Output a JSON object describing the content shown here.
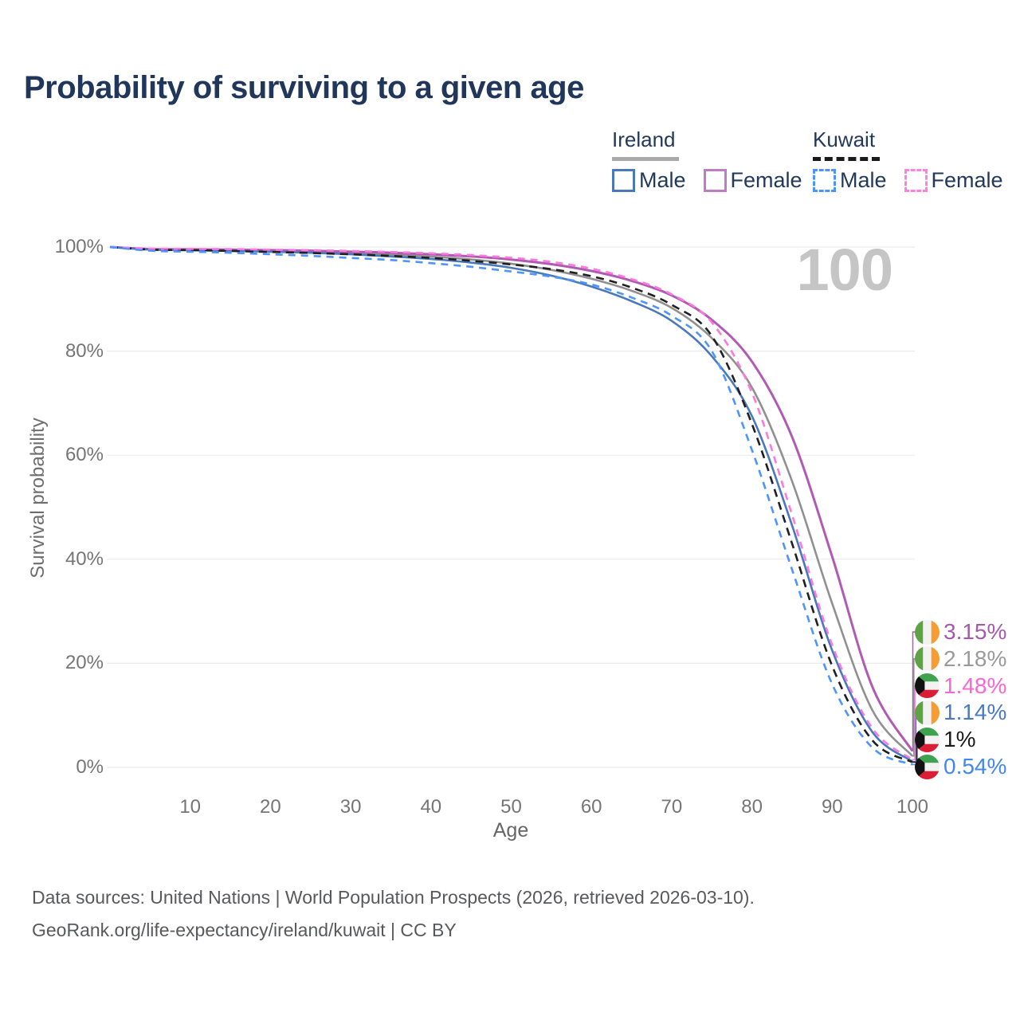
{
  "title": "Probability of surviving to a given age",
  "watermark": "100",
  "colors": {
    "title_text": "#20365a",
    "grid": "#ececec",
    "axis_text": "#757575",
    "watermark_text": "#c5c5c5",
    "footer_text": "#58595b"
  },
  "legend": {
    "groups": [
      {
        "country": "Ireland",
        "line": "solid",
        "line_color": "#a9a9a9",
        "items": [
          {
            "label": "Male",
            "color": "#4a78bc",
            "dashed": false
          },
          {
            "label": "Female",
            "color": "#bd7cc3",
            "dashed": false
          }
        ]
      },
      {
        "country": "Kuwait",
        "line": "dashed",
        "line_color": "#1a1a1a",
        "items": [
          {
            "label": "Male",
            "color": "#4d94ff",
            "dashed": true
          },
          {
            "label": "Female",
            "color": "#ff80df",
            "dashed": true
          }
        ]
      }
    ]
  },
  "chart_data": {
    "type": "line",
    "xlabel": "Age",
    "ylabel": "Survival probability",
    "xlim": [
      0,
      100
    ],
    "ylim": [
      0,
      100
    ],
    "grid": "horizontal-only",
    "x_ticks": [
      10,
      20,
      30,
      40,
      50,
      60,
      70,
      80,
      90,
      100
    ],
    "y_ticks": [
      {
        "value": 0,
        "label": "0%"
      },
      {
        "value": 20,
        "label": "20%"
      },
      {
        "value": 40,
        "label": "40%"
      },
      {
        "value": 60,
        "label": "60%"
      },
      {
        "value": 80,
        "label": "80%"
      },
      {
        "value": 100,
        "label": "100%"
      }
    ],
    "x": [
      0,
      5,
      10,
      15,
      20,
      25,
      30,
      35,
      40,
      45,
      50,
      55,
      60,
      65,
      70,
      75,
      80,
      85,
      90,
      95,
      100
    ],
    "series": [
      {
        "id": "ireland-total",
        "name": "Ireland (both sexes)",
        "country": "Ireland",
        "color": "#909090",
        "dash": null,
        "width": 2.6,
        "values": [
          100,
          99.55,
          99.5,
          99.4,
          99.25,
          99.1,
          98.85,
          98.55,
          98.15,
          97.6,
          96.8,
          95.6,
          93.9,
          91.6,
          88.3,
          82.5,
          73.0,
          55.0,
          31.5,
          11.0,
          2.18
        ]
      },
      {
        "id": "ireland-female",
        "name": "Ireland Female",
        "country": "Ireland",
        "color": "#b05ab4",
        "dash": null,
        "width": 3,
        "values": [
          100,
          99.6,
          99.55,
          99.5,
          99.4,
          99.3,
          99.1,
          98.9,
          98.6,
          98.2,
          97.6,
          96.7,
          95.4,
          93.5,
          90.7,
          86.0,
          78.0,
          63.5,
          40.5,
          15.5,
          3.15
        ]
      },
      {
        "id": "ireland-male",
        "name": "Ireland Male",
        "country": "Ireland",
        "color": "#4a78bc",
        "dash": null,
        "width": 2.6,
        "values": [
          100,
          99.5,
          99.4,
          99.3,
          99.1,
          98.9,
          98.6,
          98.2,
          97.7,
          97.0,
          96.0,
          94.5,
          92.4,
          89.6,
          85.8,
          79.0,
          67.5,
          46.5,
          22.5,
          6.8,
          1.14
        ]
      },
      {
        "id": "kuwait-total",
        "name": "Kuwait (both sexes)",
        "country": "Kuwait",
        "color": "#1f1f1f",
        "dash": "10 7",
        "width": 2.6,
        "values": [
          100,
          99.5,
          99.4,
          99.25,
          99.05,
          98.85,
          98.6,
          98.3,
          97.9,
          97.35,
          96.65,
          95.75,
          94.4,
          92.2,
          88.9,
          82.9,
          66.0,
          43.0,
          19.5,
          5.2,
          1.0
        ]
      },
      {
        "id": "kuwait-female",
        "name": "Kuwait Female",
        "country": "Kuwait",
        "color": "#ff78dd",
        "dash": "9 7",
        "width": 2.6,
        "values": [
          100,
          99.7,
          99.65,
          99.6,
          99.5,
          99.4,
          99.25,
          99.05,
          98.8,
          98.45,
          97.95,
          97.15,
          95.85,
          93.85,
          90.9,
          85.5,
          72.0,
          48.5,
          23.5,
          7.5,
          1.48
        ]
      },
      {
        "id": "kuwait-male",
        "name": "Kuwait Male",
        "country": "Kuwait",
        "color": "#4d94ff",
        "dash": "9 7",
        "width": 2.6,
        "values": [
          100,
          99.3,
          99.1,
          98.9,
          98.6,
          98.3,
          97.9,
          97.5,
          96.9,
          96.2,
          95.3,
          94.3,
          92.8,
          90.3,
          86.8,
          80.0,
          61.0,
          38.0,
          16.0,
          3.8,
          0.54
        ]
      }
    ],
    "end_labels": [
      {
        "series": "ireland-female",
        "label": "3.15%",
        "color": "#a35aab",
        "flag": "ireland"
      },
      {
        "series": "ireland-total",
        "label": "2.18%",
        "color": "#9a9a9a",
        "flag": "ireland"
      },
      {
        "series": "kuwait-female",
        "label": "1.48%",
        "color": "#f766d3",
        "flag": "kuwait"
      },
      {
        "series": "ireland-male",
        "label": "1.14%",
        "color": "#4a79c4",
        "flag": "ireland"
      },
      {
        "series": "kuwait-total",
        "label": "1%",
        "color": "#1a1a1a",
        "flag": "kuwait"
      },
      {
        "series": "kuwait-male",
        "label": "0.54%",
        "color": "#4187f0",
        "flag": "kuwait"
      }
    ],
    "flag_colors": {
      "ireland": {
        "green": "#5da244",
        "white": "#f2f2f2",
        "orange": "#f59d33"
      },
      "kuwait": {
        "green": "#3fa24e",
        "white": "#f2f2f2",
        "red": "#d91e36",
        "black": "#111111"
      }
    }
  },
  "footer": {
    "line1": "Data sources: United Nations | World Population Prospects (2026, retrieved 2026-03-10).",
    "line2": "GeoRank.org/life-expectancy/ireland/kuwait | CC BY"
  }
}
